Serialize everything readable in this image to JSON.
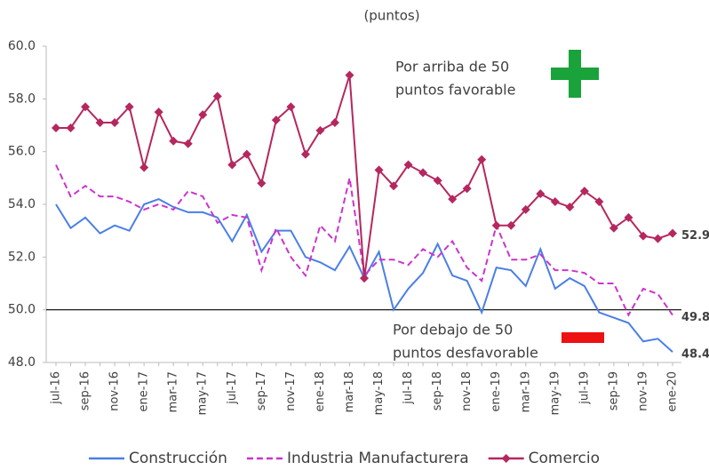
{
  "chart_data": {
    "type": "line",
    "subtitle": "(puntos)",
    "categories": [
      "jul-16",
      null,
      "sep-16",
      null,
      "nov-16",
      null,
      "ene-17",
      null,
      "mar-17",
      null,
      "may-17",
      null,
      "jul-17",
      null,
      "sep-17",
      null,
      "nov-17",
      null,
      "ene-18",
      null,
      "mar-18",
      null,
      "may-18",
      null,
      "jul-18",
      null,
      "sep-18",
      null,
      "nov-18",
      null,
      "ene-19",
      null,
      "mar-19",
      null,
      "may-19",
      null,
      "jul-19",
      null,
      "sep-19",
      null,
      "nov-19",
      null,
      "ene-20"
    ],
    "series": [
      {
        "name": "Construcción",
        "color": "#4a7fe6",
        "dashed": false,
        "markers": false,
        "values": [
          54.0,
          53.1,
          53.5,
          52.9,
          53.2,
          53.0,
          54.0,
          54.2,
          53.9,
          53.7,
          53.7,
          53.5,
          52.6,
          53.6,
          52.2,
          53.0,
          53.0,
          52.0,
          51.8,
          51.5,
          52.4,
          51.2,
          52.2,
          50.0,
          50.8,
          51.4,
          52.5,
          51.3,
          51.1,
          49.9,
          51.6,
          51.5,
          50.9,
          52.3,
          50.8,
          51.2,
          50.9,
          49.9,
          49.7,
          49.5,
          48.8,
          48.9,
          48.4
        ]
      },
      {
        "name": "Industria Manufacturera",
        "color": "#cc33cc",
        "dashed": true,
        "markers": false,
        "values": [
          55.5,
          54.3,
          54.7,
          54.3,
          54.3,
          54.1,
          53.8,
          54.0,
          53.8,
          54.5,
          54.3,
          53.3,
          53.6,
          53.5,
          51.5,
          53.1,
          52.0,
          51.3,
          53.2,
          52.6,
          55.0,
          51.3,
          51.9,
          51.9,
          51.7,
          52.3,
          52.0,
          52.6,
          51.6,
          51.1,
          53.2,
          51.9,
          51.9,
          52.1,
          51.5,
          51.5,
          51.4,
          51.0,
          51.0,
          49.8,
          50.8,
          50.6,
          49.8
        ]
      },
      {
        "name": "Comercio",
        "color": "#b5275f",
        "dashed": false,
        "markers": true,
        "values": [
          56.9,
          56.9,
          57.7,
          57.1,
          57.1,
          57.7,
          55.4,
          57.5,
          56.4,
          56.3,
          57.4,
          58.1,
          55.5,
          55.9,
          54.8,
          57.2,
          57.7,
          55.9,
          56.8,
          57.1,
          58.9,
          51.2,
          55.3,
          54.7,
          55.5,
          55.2,
          54.9,
          54.2,
          54.6,
          55.7,
          53.2,
          53.2,
          53.8,
          54.4,
          54.1,
          53.9,
          54.5,
          54.1,
          53.1,
          53.5,
          52.8,
          52.7,
          52.9
        ]
      }
    ],
    "ylim": [
      48,
      60
    ],
    "yticks": [
      {
        "value": 48,
        "label": "48.0"
      },
      {
        "value": 50,
        "label": "50.0"
      },
      {
        "value": 52,
        "label": "52.0"
      },
      {
        "value": 54,
        "label": "54.0"
      },
      {
        "value": 56,
        "label": "56.0"
      },
      {
        "value": 58,
        "label": "58.0"
      },
      {
        "value": 60,
        "label": "60.0"
      }
    ],
    "reference_line": 50,
    "grid": false,
    "legend": "bottom",
    "annotations": [
      {
        "lines": [
          "Por arriba de 50",
          "puntos favorable"
        ]
      },
      {
        "lines": [
          "Por debajo de 50",
          "puntos desfavorable"
        ]
      }
    ]
  }
}
